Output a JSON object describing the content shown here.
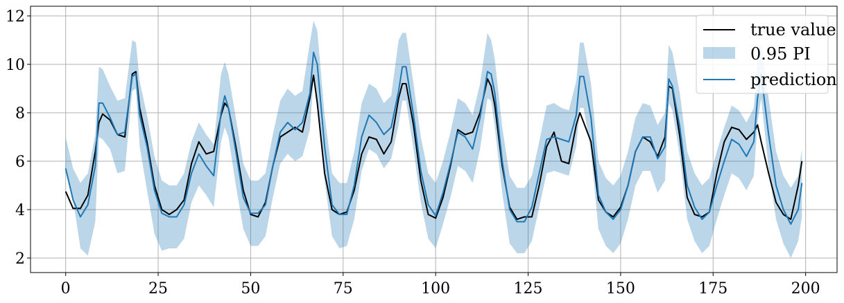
{
  "chart_data": {
    "type": "line",
    "title": "",
    "xlabel": "",
    "ylabel": "",
    "xlim": [
      -9.5,
      208.5
    ],
    "ylim": [
      1.4,
      12.4
    ],
    "x_ticks": [
      0,
      25,
      50,
      75,
      100,
      125,
      150,
      175,
      200
    ],
    "y_ticks": [
      2,
      4,
      6,
      8,
      10,
      12
    ],
    "grid": true,
    "legend_placement": "top-right",
    "x": [
      0,
      2,
      4,
      6,
      8,
      9,
      10,
      12,
      14,
      16,
      18,
      19,
      20,
      22,
      24,
      26,
      28,
      30,
      32,
      34,
      36,
      38,
      40,
      42,
      43,
      44,
      46,
      48,
      50,
      52,
      54,
      56,
      58,
      60,
      62,
      64,
      66,
      67,
      68,
      70,
      72,
      74,
      76,
      78,
      80,
      82,
      84,
      86,
      88,
      90,
      91,
      92,
      94,
      96,
      98,
      100,
      102,
      104,
      106,
      108,
      110,
      112,
      114,
      115,
      116,
      118,
      120,
      122,
      124,
      126,
      128,
      130,
      132,
      134,
      136,
      138,
      139,
      140,
      142,
      144,
      146,
      148,
      150,
      152,
      154,
      156,
      158,
      160,
      162,
      163,
      164,
      166,
      168,
      170,
      172,
      174,
      176,
      178,
      180,
      182,
      184,
      186,
      187,
      188,
      190,
      192,
      194,
      196,
      198,
      199
    ],
    "series": [
      {
        "name": "true value",
        "color": "#000000",
        "values": [
          4.75,
          4.05,
          4.05,
          4.6,
          6.4,
          7.6,
          7.95,
          7.7,
          7.1,
          7.0,
          9.6,
          9.7,
          8.2,
          6.8,
          5.0,
          4.0,
          3.8,
          4.0,
          4.4,
          5.9,
          6.8,
          6.3,
          6.4,
          7.9,
          8.4,
          8.2,
          6.6,
          4.8,
          3.8,
          3.7,
          4.3,
          5.8,
          7.0,
          7.2,
          7.4,
          7.2,
          8.6,
          9.55,
          8.4,
          5.5,
          4.0,
          3.8,
          3.9,
          4.8,
          6.3,
          7.0,
          6.9,
          6.3,
          6.8,
          8.6,
          9.2,
          9.2,
          7.5,
          5.2,
          3.8,
          3.65,
          4.5,
          5.8,
          7.3,
          7.1,
          7.2,
          8.0,
          9.4,
          9.1,
          8.3,
          5.8,
          4.1,
          3.6,
          3.7,
          3.7,
          5.0,
          6.6,
          7.2,
          6.0,
          5.9,
          7.5,
          8.0,
          7.6,
          6.8,
          4.4,
          3.9,
          3.7,
          4.1,
          5.0,
          6.4,
          7.0,
          6.8,
          6.2,
          7.0,
          9.1,
          9.0,
          7.0,
          4.5,
          3.8,
          3.7,
          3.9,
          5.5,
          6.8,
          7.4,
          7.3,
          6.9,
          7.2,
          7.5,
          6.8,
          5.5,
          4.3,
          3.8,
          3.6,
          5.0,
          6.0
        ]
      },
      {
        "name": "prediction",
        "color": "#1f77b4",
        "values": [
          5.7,
          4.4,
          3.7,
          4.2,
          5.8,
          8.4,
          8.4,
          7.8,
          7.1,
          7.2,
          9.5,
          9.6,
          7.9,
          6.6,
          4.8,
          3.85,
          3.7,
          3.7,
          4.2,
          5.5,
          6.3,
          5.8,
          5.4,
          8.0,
          8.7,
          8.2,
          6.4,
          4.5,
          3.85,
          3.85,
          4.2,
          5.8,
          7.2,
          7.6,
          7.3,
          7.6,
          8.8,
          10.5,
          10.0,
          6.6,
          4.2,
          3.8,
          3.8,
          5.0,
          7.0,
          7.9,
          7.6,
          7.1,
          7.4,
          8.9,
          9.9,
          9.9,
          7.9,
          5.6,
          4.2,
          3.75,
          4.7,
          5.9,
          7.2,
          7.0,
          6.5,
          7.8,
          9.7,
          9.6,
          8.8,
          6.0,
          4.0,
          3.5,
          3.5,
          4.1,
          5.5,
          6.9,
          7.0,
          6.9,
          6.8,
          7.9,
          9.5,
          9.5,
          7.8,
          4.6,
          3.9,
          3.6,
          4.0,
          5.0,
          6.4,
          7.0,
          7.0,
          6.1,
          6.6,
          9.4,
          9.1,
          7.4,
          5.0,
          4.1,
          3.6,
          3.9,
          5.0,
          6.0,
          6.9,
          6.7,
          6.2,
          6.8,
          8.6,
          9.6,
          7.1,
          5.0,
          4.0,
          3.4,
          4.0,
          5.1
        ]
      }
    ],
    "band": {
      "name": "0.95 PI",
      "color": "#1f77b4",
      "opacity": 0.3,
      "lower": [
        5.7,
        4.4,
        2.4,
        2.1,
        3.5,
        7.0,
        6.9,
        6.5,
        5.5,
        5.6,
        8.9,
        9.0,
        6.6,
        4.8,
        3.0,
        2.3,
        2.4,
        2.4,
        2.8,
        4.3,
        5.0,
        4.6,
        4.1,
        6.8,
        7.4,
        7.0,
        5.0,
        3.2,
        2.5,
        2.5,
        2.9,
        4.5,
        5.9,
        6.3,
        6.0,
        6.2,
        7.3,
        9.4,
        8.6,
        5.2,
        2.9,
        2.4,
        2.5,
        3.6,
        5.6,
        6.5,
        6.3,
        5.7,
        6.1,
        7.5,
        8.5,
        8.5,
        6.5,
        4.3,
        2.8,
        2.4,
        3.4,
        4.5,
        5.8,
        5.6,
        5.1,
        6.5,
        8.6,
        8.5,
        7.4,
        4.7,
        2.6,
        2.2,
        2.2,
        2.7,
        4.1,
        5.5,
        5.6,
        5.5,
        5.4,
        6.6,
        8.2,
        8.2,
        6.4,
        3.2,
        2.5,
        2.2,
        2.6,
        3.6,
        5.0,
        5.6,
        5.6,
        4.7,
        5.2,
        8.4,
        8.1,
        6.2,
        3.6,
        2.7,
        2.2,
        2.5,
        3.6,
        4.6,
        5.5,
        5.3,
        4.8,
        5.4,
        7.6,
        8.6,
        5.7,
        3.6,
        2.6,
        2.0,
        2.7,
        3.7
      ],
      "upper": [
        7.0,
        5.7,
        5.1,
        5.5,
        7.1,
        9.9,
        9.8,
        9.1,
        8.5,
        8.6,
        11.0,
        10.9,
        9.3,
        7.9,
        6.2,
        5.2,
        5.0,
        5.0,
        5.5,
        6.8,
        7.6,
        7.1,
        6.7,
        9.6,
        10.1,
        9.6,
        7.8,
        5.9,
        5.2,
        5.2,
        5.5,
        7.1,
        8.5,
        9.0,
        8.7,
        8.9,
        10.9,
        11.8,
        11.4,
        7.9,
        5.5,
        5.1,
        5.1,
        6.4,
        8.4,
        9.2,
        9.0,
        8.4,
        8.7,
        11.0,
        11.3,
        11.3,
        9.2,
        7.0,
        5.5,
        5.1,
        6.0,
        7.2,
        8.6,
        8.4,
        7.9,
        9.2,
        11.3,
        11.0,
        10.2,
        7.4,
        5.4,
        4.9,
        4.9,
        5.4,
        6.8,
        8.3,
        8.4,
        8.2,
        8.1,
        9.3,
        10.9,
        10.9,
        9.2,
        6.0,
        5.3,
        5.0,
        5.4,
        6.4,
        7.8,
        8.4,
        8.3,
        7.5,
        8.0,
        10.8,
        10.5,
        8.8,
        6.4,
        5.5,
        5.0,
        5.3,
        6.4,
        7.4,
        8.3,
        8.1,
        7.6,
        8.2,
        10.1,
        10.9,
        8.6,
        6.4,
        5.4,
        4.9,
        5.4,
        6.5
      ]
    }
  }
}
